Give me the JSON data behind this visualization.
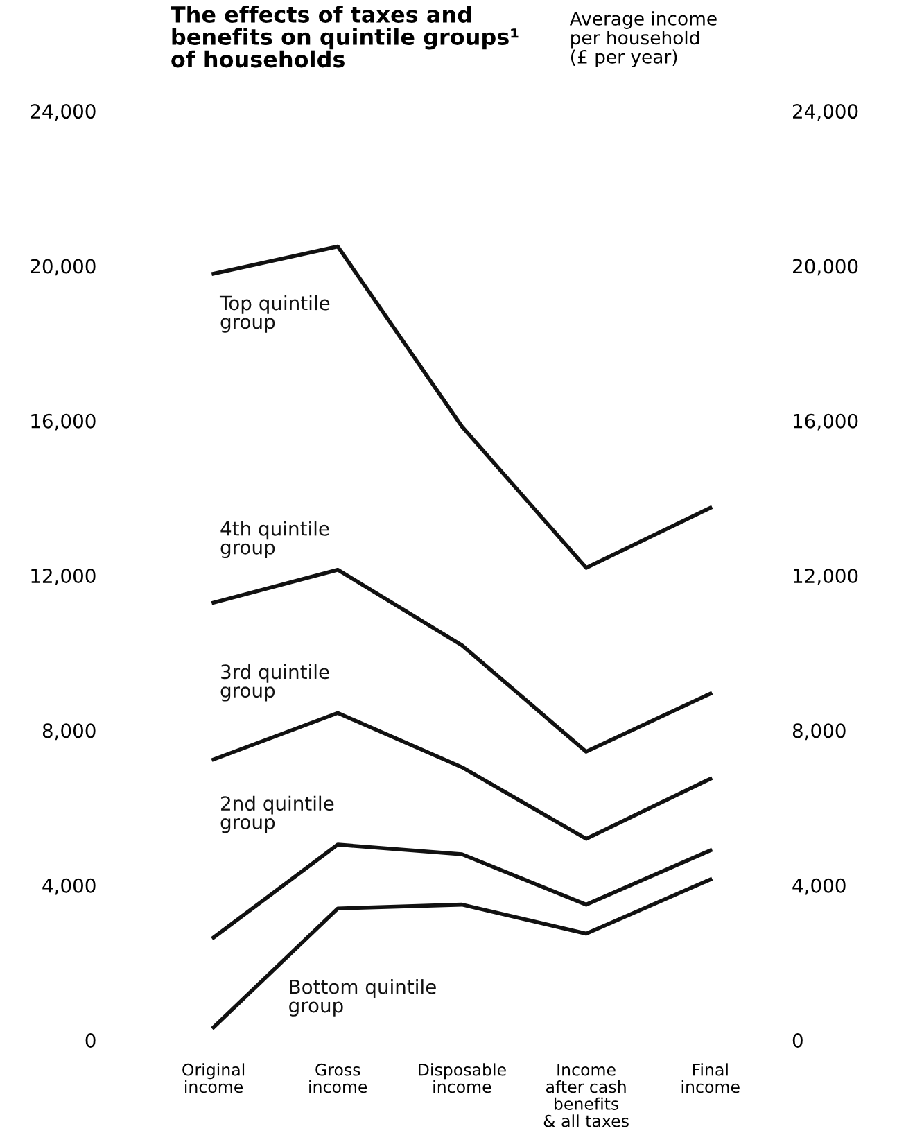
{
  "chart_data": {
    "type": "line",
    "title": "The effects of taxes and\nbenefits on quintile groups¹\nof households",
    "y2label": "Average income\nper household\n(£ per year)",
    "categories": [
      "Original\nincome",
      "Gross\nincome",
      "Disposable\nincome",
      "Income\nafter cash\nbenefits\n& all taxes",
      "Final\nincome"
    ],
    "series": [
      {
        "name": "Top quintile\ngroup",
        "color": "#111111",
        "values": [
          19800,
          20500,
          15850,
          12200,
          13750
        ]
      },
      {
        "name": "4th quintile\ngroup",
        "color": "#111111",
        "values": [
          11300,
          12150,
          10200,
          7450,
          8950
        ]
      },
      {
        "name": "3rd quintile\ngroup",
        "color": "#111111",
        "values": [
          7250,
          8450,
          7050,
          5200,
          6750
        ]
      },
      {
        "name": "2nd quintile\ngroup",
        "color": "#111111",
        "values": [
          2650,
          5050,
          4800,
          3500,
          4900
        ]
      },
      {
        "name": "Bottom quintile\ngroup",
        "color": "#111111",
        "values": [
          330,
          3400,
          3500,
          2750,
          4150
        ]
      }
    ],
    "ylim": [
      0,
      24000
    ],
    "yticks": [
      {
        "value": 0,
        "label": "0"
      },
      {
        "value": 4000,
        "label": "4,000"
      },
      {
        "value": 8000,
        "label": "8,000"
      },
      {
        "value": 12000,
        "label": "12,000"
      },
      {
        "value": 16000,
        "label": "16,000"
      },
      {
        "value": 20000,
        "label": "20,000"
      },
      {
        "value": 24000,
        "label": "24,000"
      }
    ],
    "y2lim": [
      0,
      24000
    ],
    "y2ticks": [
      {
        "value": 0,
        "label": "0"
      },
      {
        "value": 4000,
        "label": "4,000"
      },
      {
        "value": 8000,
        "label": "8,000"
      },
      {
        "value": 12000,
        "label": "12,000"
      },
      {
        "value": 16000,
        "label": "16,000"
      },
      {
        "value": 20000,
        "label": "20,000"
      },
      {
        "value": 24000,
        "label": "24,000"
      }
    ],
    "grid": false,
    "legend": false,
    "marker": "none",
    "line_style": "solid"
  }
}
